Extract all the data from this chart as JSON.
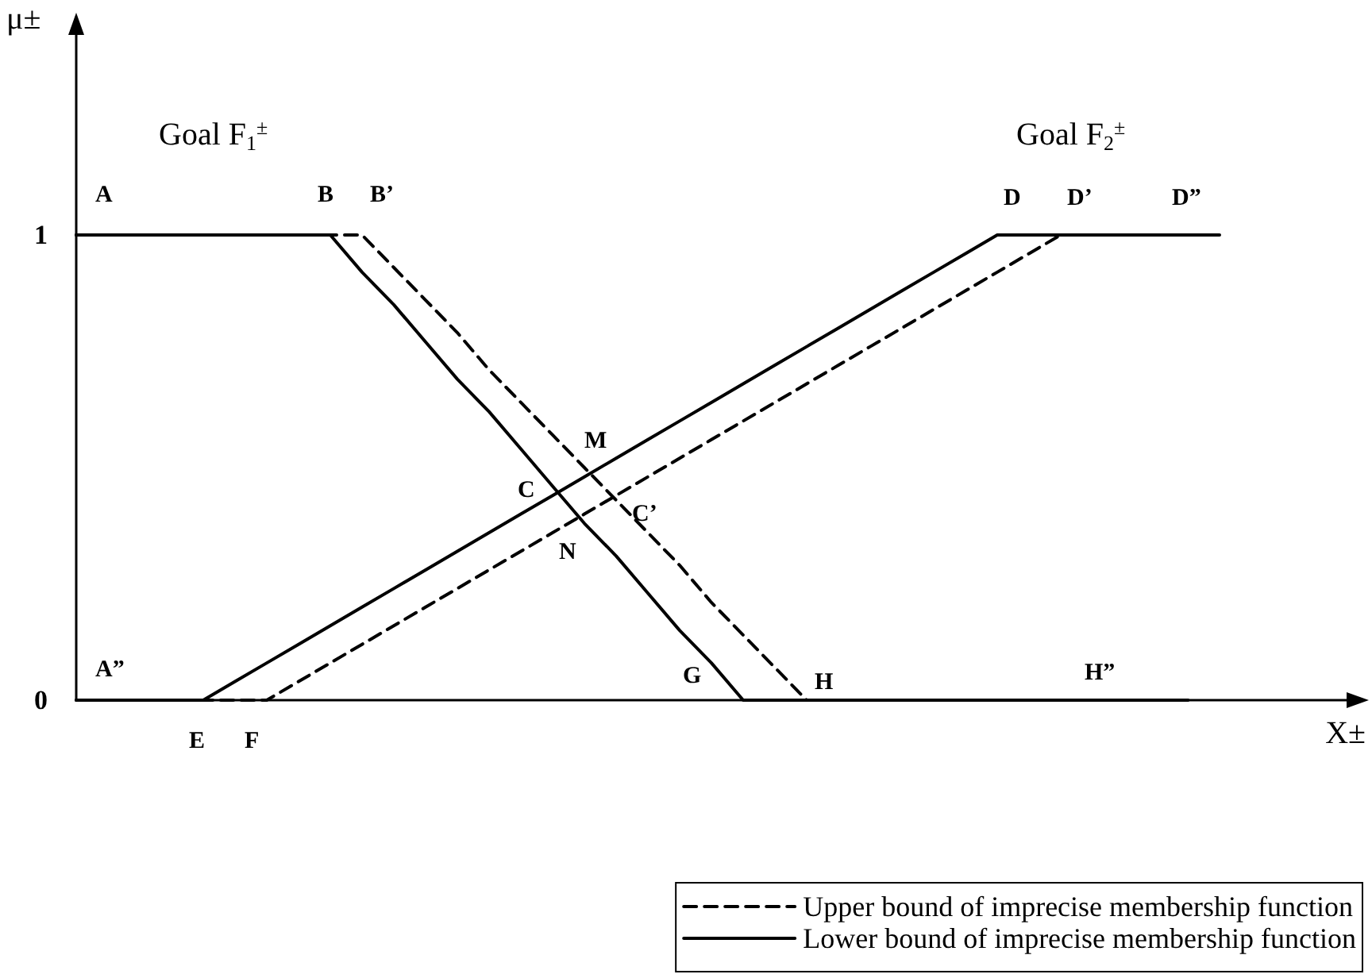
{
  "chart_data": {
    "type": "line",
    "ylabel": "μ±",
    "xlabel": "X±",
    "categories": [
      null,
      null,
      null,
      null,
      null,
      null,
      null,
      null,
      null,
      null,
      null,
      null,
      null,
      null,
      null,
      null,
      null,
      null,
      null,
      null,
      null,
      null,
      null,
      null,
      null,
      null,
      null,
      null,
      null,
      null,
      null,
      null,
      null,
      null,
      null,
      null,
      null,
      null,
      null,
      null,
      null
    ],
    "ylim": [
      0,
      1.43
    ],
    "yticks": [
      0,
      1
    ],
    "grid": false,
    "legend": "bottom right",
    "marker": "none",
    "series": [
      {
        "name": "Upper bound of imprecise membership function",
        "color": "#000000",
        "line_style": "dashed",
        "values": [
          1,
          1,
          1,
          1,
          1,
          1,
          1,
          1,
          1,
          1,
          0.93,
          0.86,
          0.79,
          0.71,
          0.64,
          0.57,
          0.5,
          0.43,
          0.36,
          0.29,
          0.21,
          0.14,
          0.07,
          0,
          0,
          0,
          0,
          0,
          0,
          0,
          0,
          0,
          0,
          0,
          0,
          0,
          null,
          null,
          null,
          null,
          null
        ]
      },
      {
        "name": "Lower bound of imprecise membership function",
        "color": "#000000",
        "line_style": "solid",
        "values": [
          1,
          1,
          1,
          1,
          1,
          1,
          1,
          1,
          1,
          0.92,
          0.85,
          0.77,
          0.69,
          0.62,
          0.54,
          0.46,
          0.38,
          0.31,
          0.23,
          0.15,
          0.08,
          0,
          0,
          0,
          0,
          0,
          0,
          0,
          0,
          0,
          0,
          0,
          0,
          0,
          0,
          0,
          null,
          null,
          null,
          null,
          null
        ]
      },
      {
        "color": "#000000",
        "line_style": "dashed",
        "values": [
          0,
          0,
          0,
          0,
          0,
          0,
          0,
          0.04,
          0.08,
          0.12,
          0.16,
          0.2,
          0.24,
          0.28,
          0.32,
          0.36,
          0.4,
          0.44,
          0.48,
          0.52,
          0.56,
          0.6,
          0.64,
          0.68,
          0.72,
          0.76,
          0.8,
          0.84,
          0.88,
          0.92,
          0.96,
          1,
          1,
          1,
          1,
          null,
          null,
          null,
          null,
          null,
          null
        ]
      },
      {
        "color": "#000000",
        "line_style": "solid",
        "values": [
          0,
          0,
          0,
          0,
          0,
          0.04,
          0.08,
          0.12,
          0.16,
          0.2,
          0.24,
          0.28,
          0.32,
          0.36,
          0.4,
          0.44,
          0.48,
          0.52,
          0.56,
          0.6,
          0.64,
          0.68,
          0.72,
          0.76,
          0.8,
          0.84,
          0.88,
          0.92,
          0.96,
          1,
          1,
          1,
          1,
          1,
          1,
          1,
          1,
          null,
          null,
          null,
          null
        ]
      }
    ],
    "annotations": [
      "Goal F$_{1}$$^{±}$",
      "Goal F$_{2}$$^{±}$",
      "A",
      "B",
      "B’",
      "D",
      "D’",
      "D”",
      "A”",
      "E",
      "F",
      "G",
      "H",
      "H”",
      "C",
      "M",
      "N",
      "C’"
    ]
  }
}
